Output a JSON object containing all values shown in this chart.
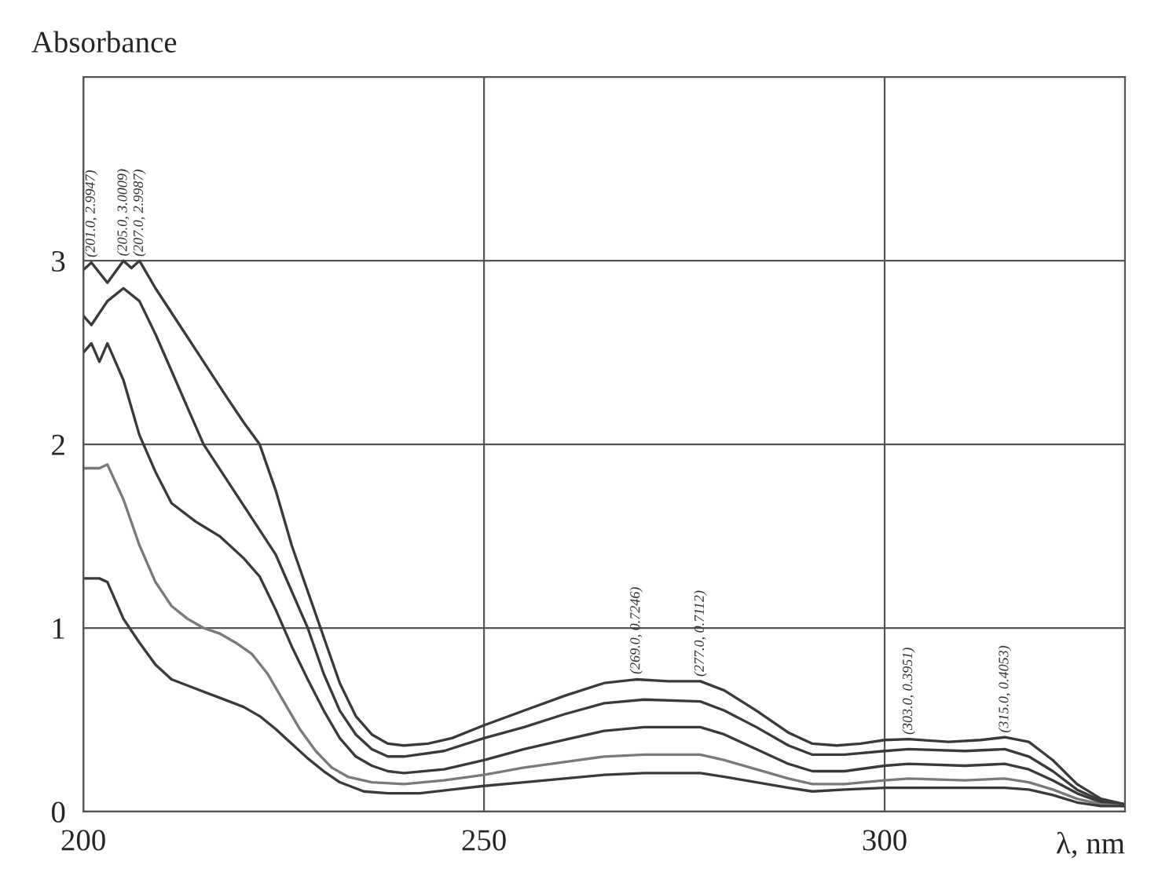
{
  "chart_data": {
    "type": "line",
    "xlabel": "λ, nm",
    "ylabel": "Absorbance",
    "xlim": [
      200,
      330
    ],
    "ylim": [
      0,
      4
    ],
    "xticks": [
      200,
      250,
      300
    ],
    "yticks": [
      0,
      1,
      2,
      3
    ],
    "grid": true,
    "marker": "none",
    "line_style": "solid",
    "series": [
      {
        "color": "#3a3a3a",
        "x": [
          200,
          201,
          203,
          205,
          206,
          207,
          209,
          212,
          215,
          218,
          220,
          222,
          224,
          226,
          228,
          230,
          232,
          234,
          236,
          238,
          240,
          243,
          246,
          250,
          255,
          260,
          265,
          269,
          273,
          277,
          280,
          284,
          288,
          291,
          294,
          297,
          300,
          303,
          308,
          312,
          315,
          318,
          321,
          324,
          327,
          330
        ],
        "values": [
          2.95,
          2.99,
          2.88,
          3.0,
          2.96,
          3.0,
          2.85,
          2.65,
          2.45,
          2.25,
          2.12,
          2.0,
          1.75,
          1.45,
          1.2,
          0.95,
          0.7,
          0.52,
          0.42,
          0.37,
          0.36,
          0.37,
          0.4,
          0.47,
          0.55,
          0.63,
          0.7,
          0.72,
          0.71,
          0.71,
          0.66,
          0.55,
          0.43,
          0.37,
          0.36,
          0.37,
          0.39,
          0.395,
          0.38,
          0.39,
          0.405,
          0.38,
          0.28,
          0.15,
          0.07,
          0.04
        ]
      },
      {
        "color": "#3a3a3a",
        "x": [
          200,
          201,
          203,
          205,
          207,
          209,
          211,
          213,
          215,
          218,
          221,
          224,
          226,
          228,
          230,
          232,
          234,
          236,
          238,
          240,
          245,
          250,
          255,
          260,
          265,
          270,
          277,
          280,
          284,
          288,
          291,
          295,
          300,
          303,
          310,
          315,
          318,
          321,
          324,
          327,
          330
        ],
        "values": [
          2.7,
          2.65,
          2.78,
          2.85,
          2.78,
          2.6,
          2.4,
          2.2,
          2.0,
          1.8,
          1.6,
          1.4,
          1.2,
          1.0,
          0.75,
          0.55,
          0.42,
          0.34,
          0.3,
          0.3,
          0.33,
          0.4,
          0.46,
          0.53,
          0.59,
          0.61,
          0.6,
          0.55,
          0.46,
          0.36,
          0.31,
          0.31,
          0.33,
          0.34,
          0.33,
          0.34,
          0.3,
          0.22,
          0.12,
          0.06,
          0.04
        ]
      },
      {
        "color": "#3a3a3a",
        "x": [
          200,
          201,
          202,
          203,
          205,
          207,
          209,
          211,
          214,
          217,
          220,
          222,
          224,
          226,
          228,
          230,
          232,
          234,
          236,
          238,
          240,
          245,
          250,
          255,
          260,
          265,
          270,
          277,
          280,
          284,
          288,
          291,
          295,
          300,
          303,
          310,
          315,
          318,
          321,
          324,
          327,
          330
        ],
        "values": [
          2.5,
          2.55,
          2.45,
          2.55,
          2.35,
          2.05,
          1.85,
          1.68,
          1.58,
          1.5,
          1.38,
          1.28,
          1.1,
          0.9,
          0.72,
          0.55,
          0.4,
          0.3,
          0.25,
          0.22,
          0.21,
          0.23,
          0.28,
          0.34,
          0.39,
          0.44,
          0.46,
          0.46,
          0.42,
          0.34,
          0.26,
          0.22,
          0.22,
          0.25,
          0.26,
          0.25,
          0.26,
          0.23,
          0.17,
          0.1,
          0.05,
          0.04
        ]
      },
      {
        "color": "#7a7a7a",
        "x": [
          200,
          202,
          203,
          205,
          207,
          209,
          211,
          213,
          215,
          217,
          219,
          221,
          223,
          225,
          227,
          229,
          231,
          233,
          236,
          240,
          245,
          250,
          255,
          260,
          265,
          270,
          277,
          280,
          284,
          288,
          291,
          295,
          300,
          303,
          310,
          315,
          318,
          321,
          324,
          327,
          330
        ],
        "values": [
          1.87,
          1.87,
          1.89,
          1.7,
          1.45,
          1.25,
          1.12,
          1.05,
          1.0,
          0.97,
          0.92,
          0.86,
          0.75,
          0.6,
          0.45,
          0.33,
          0.24,
          0.19,
          0.16,
          0.15,
          0.17,
          0.2,
          0.24,
          0.27,
          0.3,
          0.31,
          0.31,
          0.28,
          0.23,
          0.18,
          0.15,
          0.15,
          0.17,
          0.18,
          0.17,
          0.18,
          0.16,
          0.12,
          0.07,
          0.04,
          0.03
        ]
      },
      {
        "color": "#3a3a3a",
        "x": [
          200,
          202,
          203,
          205,
          207,
          209,
          211,
          214,
          217,
          220,
          222,
          224,
          226,
          228,
          230,
          232,
          235,
          238,
          242,
          246,
          250,
          255,
          260,
          265,
          270,
          277,
          280,
          284,
          288,
          291,
          295,
          300,
          303,
          310,
          315,
          318,
          321,
          324,
          327,
          330
        ],
        "values": [
          1.27,
          1.27,
          1.25,
          1.05,
          0.92,
          0.8,
          0.72,
          0.67,
          0.62,
          0.57,
          0.52,
          0.45,
          0.37,
          0.29,
          0.22,
          0.16,
          0.11,
          0.1,
          0.1,
          0.12,
          0.14,
          0.16,
          0.18,
          0.2,
          0.21,
          0.21,
          0.19,
          0.16,
          0.13,
          0.11,
          0.12,
          0.13,
          0.13,
          0.13,
          0.13,
          0.12,
          0.09,
          0.05,
          0.03,
          0.03
        ]
      }
    ],
    "annotations": [
      {
        "text": "(201.0, 2.9947)",
        "x": 201,
        "y": 2.9947
      },
      {
        "text": "(205.0, 3.0009)",
        "x": 205,
        "y": 3.0009
      },
      {
        "text": "(207.0, 2.9987)",
        "x": 207,
        "y": 2.9987
      },
      {
        "text": "(269.0, 0.7246)",
        "x": 269,
        "y": 0.7246
      },
      {
        "text": "(277.0, 0.7112)",
        "x": 277,
        "y": 0.7112
      },
      {
        "text": "(303.0, 0.3951)",
        "x": 303,
        "y": 0.3951
      },
      {
        "text": "(315.0, 0.4053)",
        "x": 315,
        "y": 0.4053
      }
    ]
  }
}
